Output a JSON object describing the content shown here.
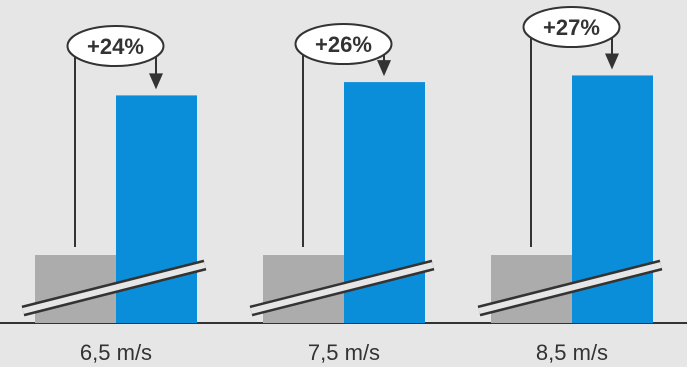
{
  "chart_data": {
    "type": "bar",
    "title": "",
    "xlabel": "",
    "ylabel": "",
    "categories": [
      "6,5 m/s",
      "7,5 m/s",
      "8,5 m/s"
    ],
    "axis_break": true,
    "series": [
      {
        "color": "#acacac",
        "values": [
          100,
          100,
          100
        ]
      },
      {
        "color": "#0a8ed9",
        "values": [
          124,
          126,
          127
        ]
      }
    ],
    "annotations": [
      "+24%",
      "+26%",
      "+27%"
    ],
    "grid": false,
    "legend": "none"
  },
  "colors": {
    "background": "#e6e6e6",
    "baseline": "#333333",
    "connector": "#333333"
  }
}
